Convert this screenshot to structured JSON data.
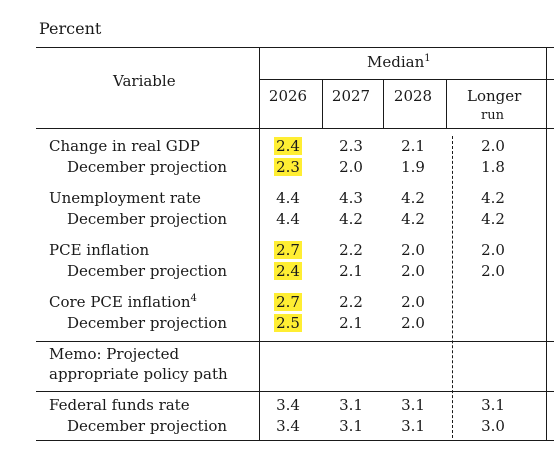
{
  "caption": "Percent",
  "header": {
    "variable": "Variable",
    "median": "Median",
    "median_note": "1",
    "years": [
      "2026",
      "2027",
      "2028"
    ],
    "longer_run_line1": "Longer",
    "longer_run_line2": "run"
  },
  "rows": [
    {
      "label": "Change in real GDP",
      "values": [
        "2.4",
        "2.3",
        "2.1",
        "2.0"
      ],
      "highlight": true
    },
    {
      "label": "December projection",
      "values": [
        "2.3",
        "2.0",
        "1.9",
        "1.8"
      ],
      "highlight": true
    },
    {
      "label": "Unemployment rate",
      "values": [
        "4.4",
        "4.3",
        "4.2",
        "4.2"
      ],
      "highlight": false
    },
    {
      "label": "December projection",
      "values": [
        "4.4",
        "4.2",
        "4.2",
        "4.2"
      ],
      "highlight": false
    },
    {
      "label": "PCE inflation",
      "values": [
        "2.7",
        "2.2",
        "2.0",
        "2.0"
      ],
      "highlight": true
    },
    {
      "label": "December projection",
      "values": [
        "2.4",
        "2.1",
        "2.0",
        "2.0"
      ],
      "highlight": true
    },
    {
      "label": "Core PCE inflation",
      "note": "4",
      "values": [
        "2.7",
        "2.2",
        "2.0",
        ""
      ],
      "highlight": true
    },
    {
      "label": "December projection",
      "values": [
        "2.5",
        "2.1",
        "2.0",
        ""
      ],
      "highlight": true
    }
  ],
  "memo": {
    "line1": "Memo: Projected",
    "line2": "appropriate policy path"
  },
  "policy_rows": [
    {
      "label": "Federal funds rate",
      "values": [
        "3.4",
        "3.1",
        "3.1",
        "3.1"
      ]
    },
    {
      "label": "December projection",
      "values": [
        "3.4",
        "3.1",
        "3.1",
        "3.0"
      ]
    }
  ],
  "colors": {
    "highlight": "#ffee33",
    "rule": "#1a1a1a"
  }
}
